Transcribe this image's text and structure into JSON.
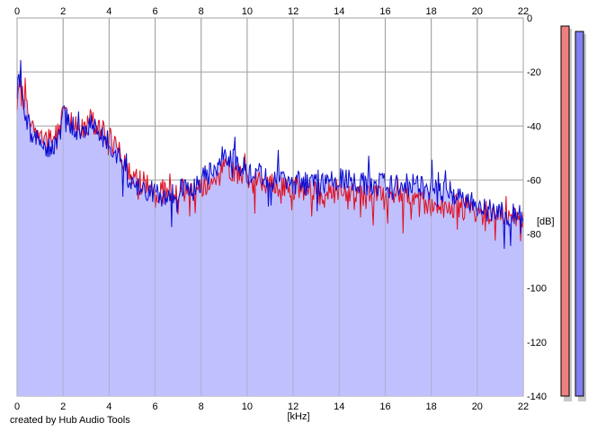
{
  "footer": {
    "credit": "created by Hub Audio Tools"
  },
  "colors": {
    "background": "#ffffff",
    "fill": "#c0c0ff",
    "channel_left": "#e01020",
    "channel_right": "#0a0ad0",
    "grid": "#a0a0a0",
    "meter_left": "#f08080",
    "meter_right": "#8080f0"
  },
  "chart_data": {
    "type": "line",
    "xlabel": "[kHz]",
    "ylabel": "[dB]",
    "xlim": [
      0,
      22
    ],
    "ylim": [
      -140,
      0
    ],
    "x_ticks": [
      "0",
      "2",
      "4",
      "6",
      "8",
      "10",
      "12",
      "14",
      "16",
      "18",
      "20",
      "22"
    ],
    "y_ticks": [
      "0",
      "-20",
      "-40",
      "-60",
      "-80",
      "-100",
      "-120",
      "-140"
    ],
    "grid": true,
    "series": [
      {
        "channel": "left",
        "color": "#e01020",
        "x": [
          0,
          0.1,
          0.3,
          0.6,
          1.0,
          1.5,
          1.9,
          2.0,
          2.4,
          2.8,
          3.2,
          3.6,
          4.0,
          4.3,
          4.6,
          4.8,
          5.0,
          5.5,
          6.0,
          6.5,
          7.0,
          7.5,
          8.0,
          8.5,
          9.0,
          9.5,
          10.0,
          11.0,
          12.0,
          13.0,
          14.0,
          15.0,
          16.0,
          17.0,
          18.0,
          19.0,
          19.7,
          20.0,
          20.5,
          21.0,
          21.5,
          22.0
        ],
        "y": [
          -35,
          -27,
          -30,
          -38,
          -44,
          -46,
          -40,
          -32,
          -38,
          -42,
          -38,
          -41,
          -45,
          -49,
          -52,
          -56,
          -58,
          -61,
          -64,
          -65,
          -63,
          -64,
          -62,
          -61,
          -56,
          -57,
          -60,
          -62,
          -63,
          -65,
          -64,
          -65,
          -67,
          -67,
          -69,
          -70,
          -71,
          -73,
          -72,
          -73,
          -74,
          -74
        ]
      },
      {
        "channel": "right",
        "color": "#0a0ad0",
        "x": [
          0,
          0.1,
          0.3,
          0.6,
          1.0,
          1.5,
          1.9,
          2.0,
          2.4,
          2.8,
          3.2,
          3.6,
          4.0,
          4.3,
          4.6,
          4.8,
          5.0,
          5.5,
          6.0,
          6.5,
          7.0,
          7.5,
          8.0,
          8.5,
          9.0,
          9.5,
          10.0,
          11.0,
          12.0,
          13.0,
          14.0,
          15.0,
          16.0,
          17.0,
          18.0,
          19.0,
          19.7,
          20.0,
          20.5,
          21.0,
          21.5,
          22.0
        ],
        "y": [
          -30,
          -18,
          -33,
          -42,
          -47,
          -48,
          -43,
          -34,
          -40,
          -43,
          -40,
          -42,
          -47,
          -51,
          -54,
          -58,
          -62,
          -64,
          -65,
          -66,
          -64,
          -63,
          -60,
          -57,
          -50,
          -53,
          -57,
          -59,
          -61,
          -62,
          -60,
          -61,
          -62,
          -62,
          -63,
          -65,
          -67,
          -70,
          -71,
          -72,
          -73,
          -72
        ]
      }
    ],
    "level_meters": [
      {
        "channel": "left",
        "color": "#f08080",
        "value_db": -3
      },
      {
        "channel": "right",
        "color": "#8080f0",
        "value_db": -5
      }
    ]
  }
}
